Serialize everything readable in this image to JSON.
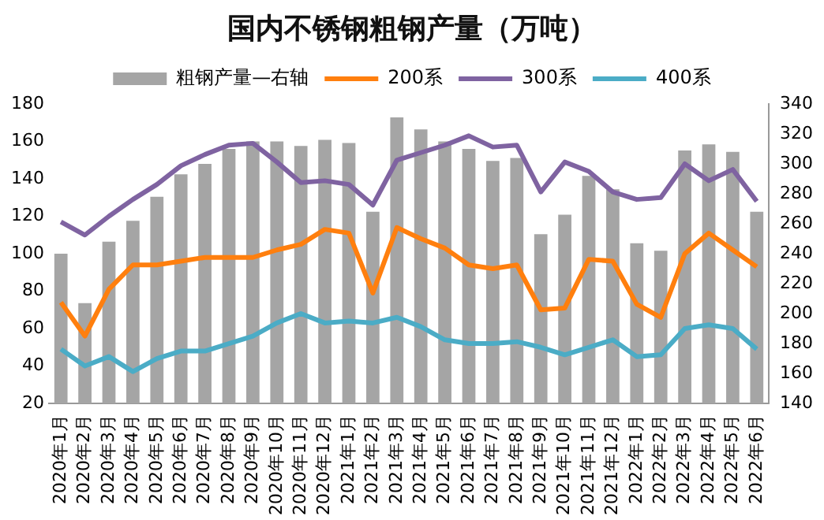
{
  "chart_data": {
    "type": "line",
    "title": "国内不锈钢粗钢产量（万吨）",
    "categories": [
      "2020年1月",
      "2020年2月",
      "2020年3月",
      "2020年4月",
      "2020年5月",
      "2020年6月",
      "2020年7月",
      "2020年8月",
      "2020年9月",
      "2020年10月",
      "2020年11月",
      "2020年12月",
      "2021年1月",
      "2021年2月",
      "2021年3月",
      "2021年4月",
      "2021年5月",
      "2021年6月",
      "2021年7月",
      "2021年8月",
      "2021年9月",
      "2021年10月",
      "2021年11月",
      "2021年12月",
      "2022年1月",
      "2022年2月",
      "2022年3月",
      "2022年4月",
      "2022年5月",
      "2022年6月"
    ],
    "series": [
      {
        "name": "粗钢产量—右轴",
        "type": "bar",
        "axis": "y2",
        "color": "#a5a5a5",
        "values": [
          240,
          207,
          248,
          262,
          278,
          293,
          300,
          310,
          315,
          315,
          312,
          316,
          314,
          268,
          331,
          323,
          315,
          310,
          302,
          304,
          253,
          266,
          292,
          283,
          247,
          242,
          309,
          313,
          308,
          268
        ]
      },
      {
        "name": "200系",
        "color": "#ff7f0e",
        "values": [
          74,
          56,
          81,
          94,
          94,
          96,
          98,
          98,
          98,
          102,
          105,
          113,
          111,
          79,
          114,
          108,
          103,
          94,
          92,
          94,
          70,
          71,
          97,
          96,
          73,
          66,
          100,
          111,
          102,
          93
        ]
      },
      {
        "name": "300系",
        "color": "#7f63a1",
        "values": [
          117,
          110,
          120,
          129,
          137,
          147,
          153,
          158,
          159,
          149,
          138,
          139,
          137,
          126,
          150,
          154,
          158,
          163,
          157,
          158,
          133,
          149,
          144,
          133,
          129,
          130,
          148,
          139,
          145,
          128
        ]
      },
      {
        "name": "400系",
        "color": "#4bacc6",
        "values": [
          49,
          40,
          45,
          37,
          44,
          48,
          48,
          52,
          56,
          63,
          68,
          63,
          64,
          63,
          66,
          61,
          54,
          52,
          52,
          53,
          50,
          46,
          50,
          54,
          45,
          46,
          60,
          62,
          60,
          49
        ]
      }
    ],
    "ylim": [
      20,
      180
    ],
    "yticks": [
      20,
      40,
      60,
      80,
      100,
      120,
      140,
      160,
      180
    ],
    "y2lim": [
      140,
      340
    ],
    "y2ticks": [
      140,
      160,
      180,
      200,
      220,
      240,
      260,
      280,
      300,
      320,
      340
    ],
    "grid": false,
    "legend": "top",
    "marker": "none"
  }
}
